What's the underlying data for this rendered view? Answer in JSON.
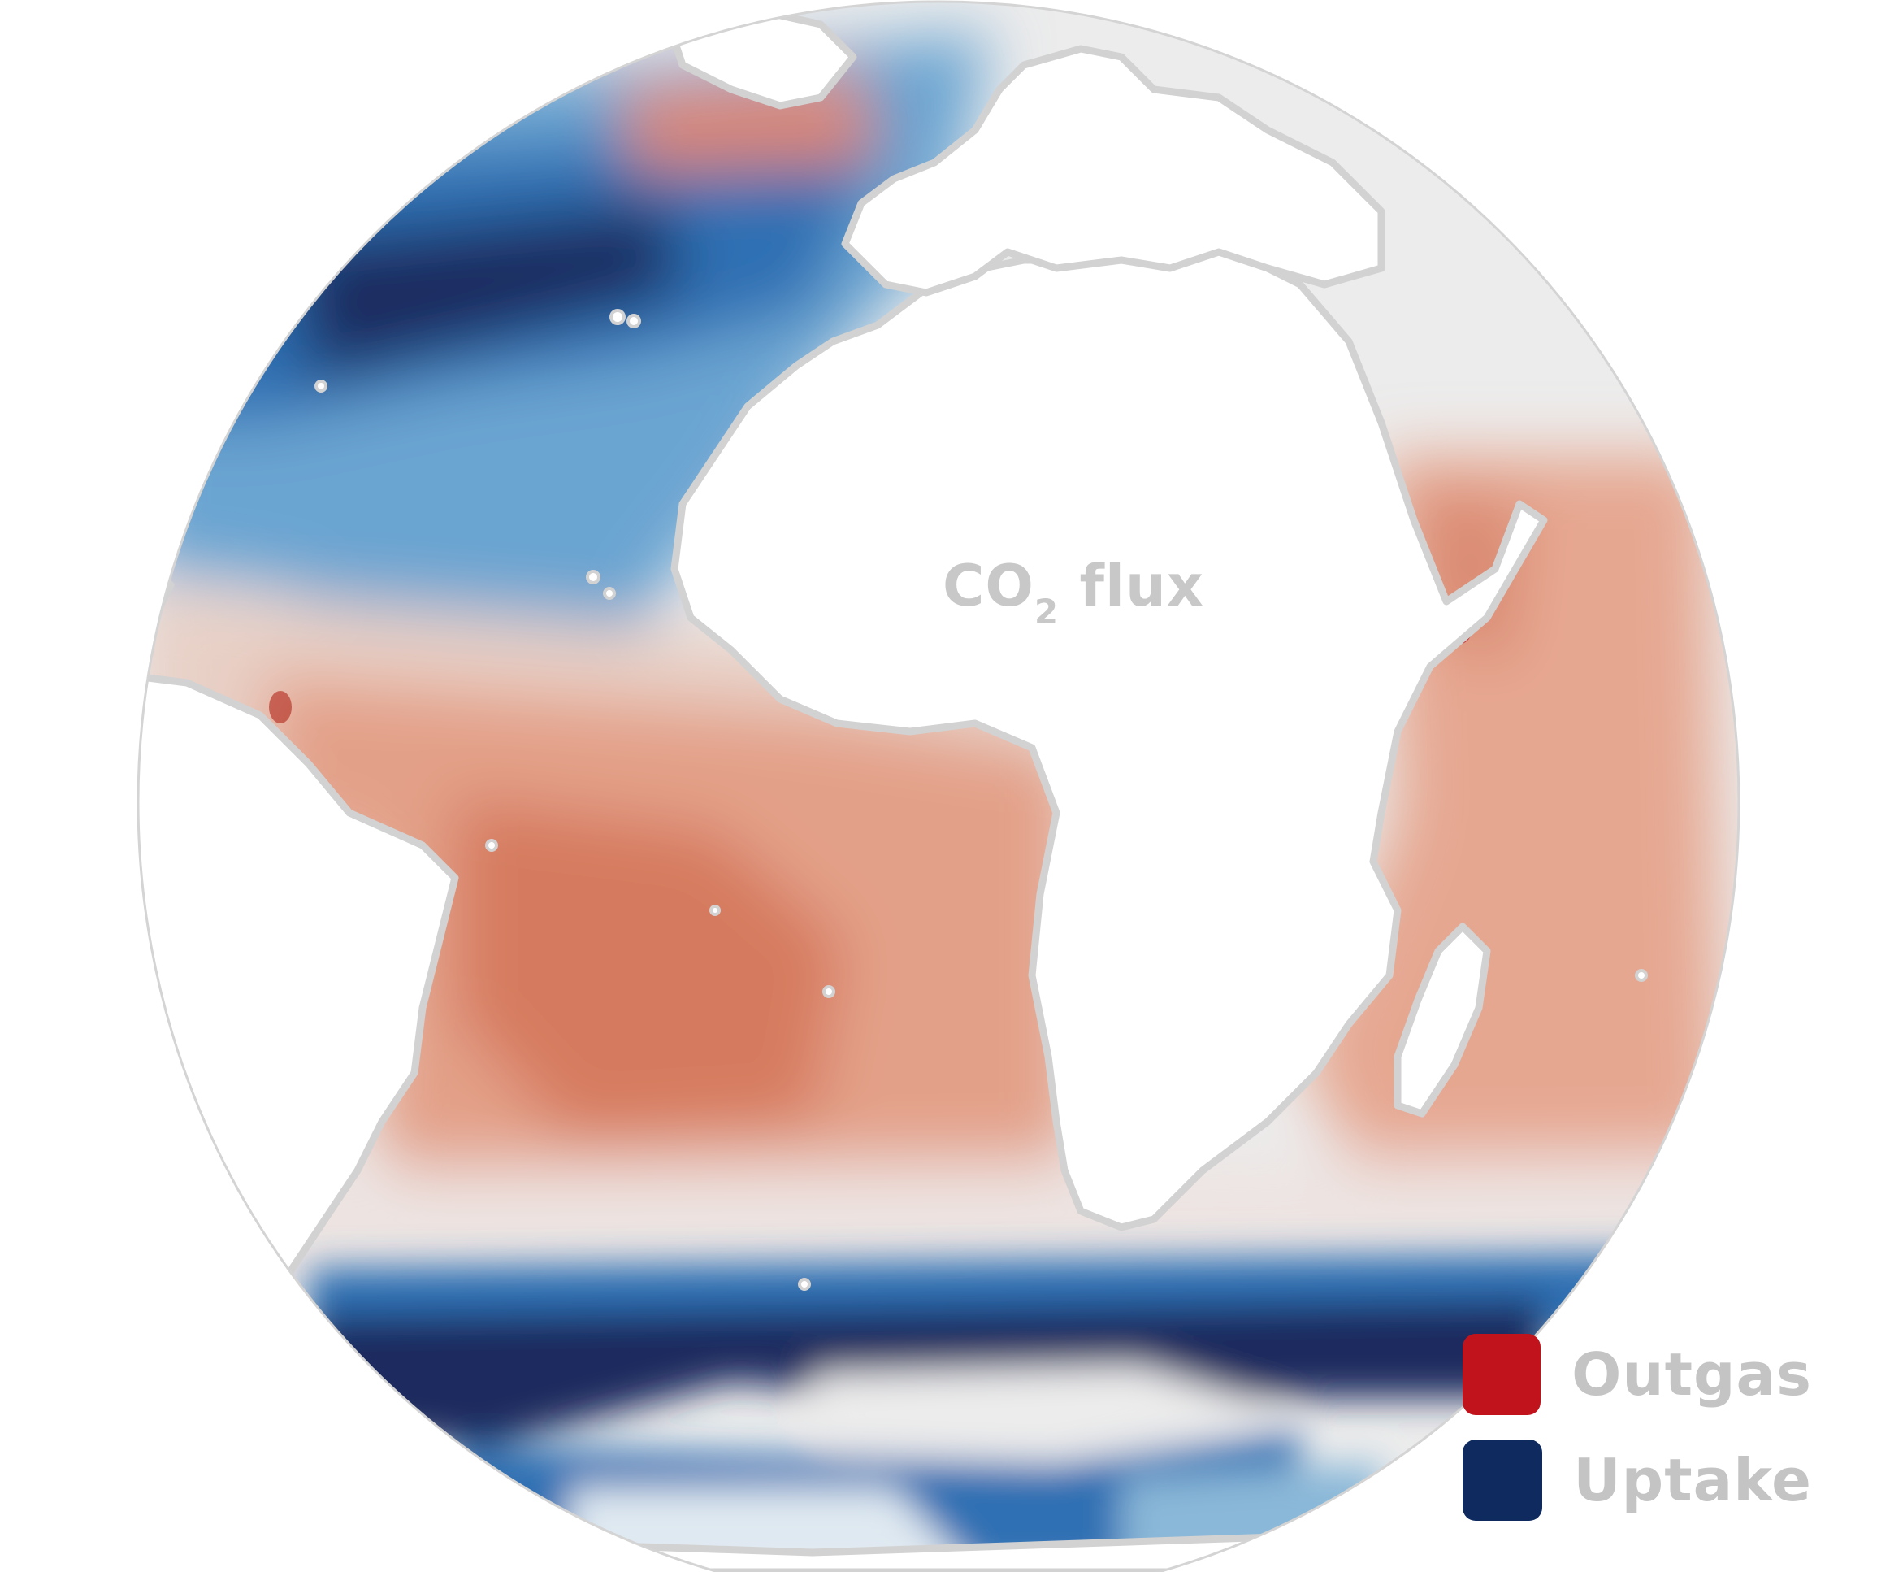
{
  "map": {
    "title_prefix": "CO",
    "title_subscript": "2",
    "title_suffix": " flux",
    "colors": {
      "outgas_strong": "#c0272d",
      "outgas_mid": "#d9735a",
      "outgas_light": "#eab7a6",
      "neutral": "#ececec",
      "uptake_light": "#8ab8d8",
      "uptake_mid": "#2f6fb3",
      "uptake_strong": "#1b2a5e",
      "land": "#ffffff",
      "coastline": "#d2d2d2"
    },
    "legend": [
      {
        "key": "outgas",
        "label": "Outgas",
        "color": "#c1131b"
      },
      {
        "key": "uptake",
        "label": "Uptake",
        "color": "#0f2a5f"
      }
    ]
  }
}
